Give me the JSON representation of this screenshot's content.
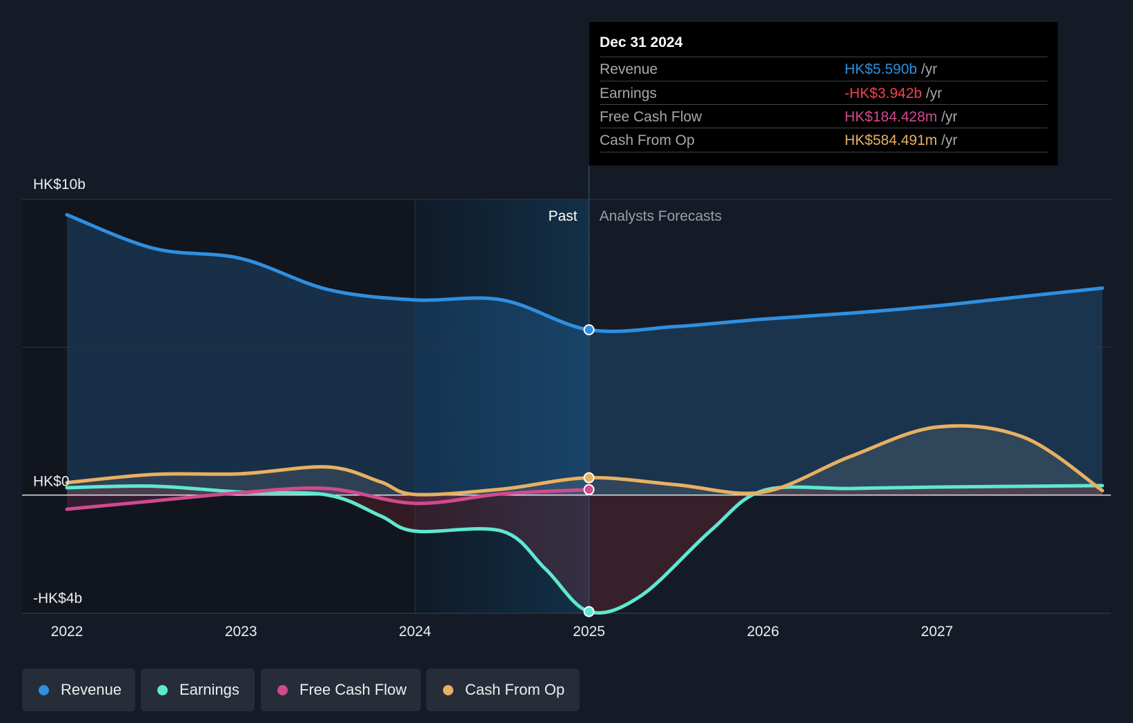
{
  "chart_data": {
    "type": "line",
    "currency": "HK$",
    "y_unit": "billions",
    "ylim": [
      -4,
      10
    ],
    "x_range": [
      2021.85,
      2027.95
    ],
    "y_axis_labels": [
      {
        "value": 10,
        "label": "HK$10b"
      },
      {
        "value": 0,
        "label": "HK$0"
      },
      {
        "value": -4,
        "label": "-HK$4b"
      }
    ],
    "gridlines": [
      10,
      5,
      0
    ],
    "x_ticks": [
      {
        "value": 2022,
        "label": "2022"
      },
      {
        "value": 2023,
        "label": "2023"
      },
      {
        "value": 2024,
        "label": "2024"
      },
      {
        "value": 2025,
        "label": "2025"
      },
      {
        "value": 2026,
        "label": "2026"
      },
      {
        "value": 2027,
        "label": "2027"
      }
    ],
    "past_label": "Past",
    "forecast_label": "Analysts Forecasts",
    "divider_x": 2025,
    "highlight_start_x": 2024,
    "series": [
      {
        "name": "Revenue",
        "color": "#2f8fe0",
        "points": [
          [
            2022,
            9.48
          ],
          [
            2022.5,
            8.34
          ],
          [
            2023,
            8.0
          ],
          [
            2023.5,
            6.95
          ],
          [
            2024,
            6.6
          ],
          [
            2024.5,
            6.6
          ],
          [
            2025,
            5.59
          ],
          [
            2025.5,
            5.7
          ],
          [
            2026,
            5.95
          ],
          [
            2026.5,
            6.15
          ],
          [
            2027,
            6.4
          ],
          [
            2027.5,
            6.72
          ],
          [
            2027.95,
            7.0
          ]
        ]
      },
      {
        "name": "Earnings",
        "color": "#5ee8d0",
        "points": [
          [
            2022,
            0.25
          ],
          [
            2022.5,
            0.3
          ],
          [
            2023,
            0.1
          ],
          [
            2023.5,
            0.0
          ],
          [
            2023.8,
            -0.7
          ],
          [
            2024,
            -1.22
          ],
          [
            2024.5,
            -1.22
          ],
          [
            2024.75,
            -2.5
          ],
          [
            2025,
            -3.942
          ],
          [
            2025.3,
            -3.4
          ],
          [
            2025.7,
            -1.2
          ],
          [
            2026,
            0.15
          ],
          [
            2026.5,
            0.22
          ],
          [
            2027,
            0.27
          ],
          [
            2027.95,
            0.32
          ]
        ]
      },
      {
        "name": "Free Cash Flow",
        "color": "#d04a8e",
        "points": [
          [
            2022,
            -0.48
          ],
          [
            2022.5,
            -0.2
          ],
          [
            2023,
            0.08
          ],
          [
            2023.5,
            0.22
          ],
          [
            2024,
            -0.28
          ],
          [
            2024.5,
            0.04
          ],
          [
            2025,
            0.184
          ]
        ]
      },
      {
        "name": "Cash From Op",
        "color": "#e8b061",
        "points": [
          [
            2022,
            0.42
          ],
          [
            2022.5,
            0.7
          ],
          [
            2023,
            0.72
          ],
          [
            2023.5,
            0.95
          ],
          [
            2023.8,
            0.45
          ],
          [
            2024,
            0.02
          ],
          [
            2024.5,
            0.2
          ],
          [
            2025,
            0.584
          ],
          [
            2025.5,
            0.35
          ],
          [
            2026,
            0.1
          ],
          [
            2026.5,
            1.3
          ],
          [
            2027,
            2.3
          ],
          [
            2027.5,
            1.95
          ],
          [
            2027.95,
            0.15
          ]
        ]
      }
    ],
    "tooltip": {
      "date": "Dec 31 2024",
      "rows": [
        {
          "label": "Revenue",
          "value": "HK$5.590b",
          "unit": "/yr",
          "color": "#2f8fe0"
        },
        {
          "label": "Earnings",
          "value": "-HK$3.942b",
          "unit": "/yr",
          "color": "#f0434e"
        },
        {
          "label": "Free Cash Flow",
          "value": "HK$184.428m",
          "unit": "/yr",
          "color": "#d04a8e"
        },
        {
          "label": "Cash From Op",
          "value": "HK$584.491m",
          "unit": "/yr",
          "color": "#e8b061"
        }
      ]
    },
    "legend": [
      {
        "label": "Revenue",
        "color": "#2f8fe0"
      },
      {
        "label": "Earnings",
        "color": "#5ee8d0"
      },
      {
        "label": "Free Cash Flow",
        "color": "#d04a8e"
      },
      {
        "label": "Cash From Op",
        "color": "#e8b061"
      }
    ]
  }
}
